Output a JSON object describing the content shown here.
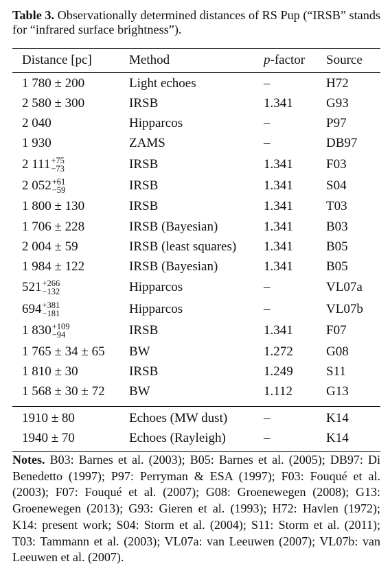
{
  "caption": {
    "label": "Table 3.",
    "text": "Observationally determined distances of RS Pup (“IRSB” stands for “infrared surface brightness”)."
  },
  "table": {
    "headers": {
      "distance_label": "Distance [pc]",
      "method_label": "Method",
      "pfactor_italic": "p",
      "pfactor_rest": "-factor",
      "source_label": "Source"
    },
    "rows": [
      {
        "distance": "1 780 ± 200",
        "method": "Light echoes",
        "pfactor": "–",
        "source": "H72"
      },
      {
        "distance": "2 580 ± 300",
        "method": "IRSB",
        "pfactor": "1.341",
        "source": "G93"
      },
      {
        "distance": "2 040",
        "method": "Hipparcos",
        "pfactor": "–",
        "source": "P97"
      },
      {
        "distance": "1 930",
        "method": "ZAMS",
        "pfactor": "–",
        "source": "DB97"
      },
      {
        "distance_base": "2 111",
        "sup": "+75",
        "sub": "−73",
        "method": "IRSB",
        "pfactor": "1.341",
        "source": "F03"
      },
      {
        "distance_base": "2 052",
        "sup": "+61",
        "sub": "−59",
        "method": "IRSB",
        "pfactor": "1.341",
        "source": "S04"
      },
      {
        "distance": "1 800 ± 130",
        "method": "IRSB",
        "pfactor": "1.341",
        "source": "T03"
      },
      {
        "distance": "1 706 ± 228",
        "method": "IRSB (Bayesian)",
        "pfactor": "1.341",
        "source": "B03"
      },
      {
        "distance": "2 004 ± 59",
        "method": "IRSB (least squares)",
        "pfactor": "1.341",
        "source": "B05"
      },
      {
        "distance": "1 984 ± 122",
        "method": "IRSB (Bayesian)",
        "pfactor": "1.341",
        "source": "B05"
      },
      {
        "distance_base": "521",
        "sup": "+266",
        "sub": "−132",
        "method": "Hipparcos",
        "pfactor": "–",
        "source": "VL07a"
      },
      {
        "distance_base": "694",
        "sup": "+381",
        "sub": "−181",
        "method": "Hipparcos",
        "pfactor": "–",
        "source": "VL07b"
      },
      {
        "distance_base": "1 830",
        "sup": "+109",
        "sub": "−94",
        "method": "IRSB",
        "pfactor": "1.341",
        "source": "F07"
      },
      {
        "distance": "1 765 ± 34 ± 65",
        "method": "BW",
        "pfactor": "1.272",
        "source": "G08"
      },
      {
        "distance": "1 810 ± 30",
        "method": "IRSB",
        "pfactor": "1.249",
        "source": "S11"
      },
      {
        "distance": "1 568 ± 30 ± 72",
        "method": "BW",
        "pfactor": "1.112",
        "source": "G13"
      }
    ],
    "rows_present": [
      {
        "distance": "1910 ± 80",
        "method": "Echoes (MW dust)",
        "pfactor": "–",
        "source": "K14"
      },
      {
        "distance": "1940 ± 70",
        "method": "Echoes (Rayleigh)",
        "pfactor": "–",
        "source": "K14"
      }
    ]
  },
  "notes": {
    "label": "Notes.",
    "text": "B03: Barnes et al. (2003); B05: Barnes et al. (2005); DB97: Di Benedetto (1997); P97: Perryman & ESA (1997); F03: Fouqué et al. (2003); F07: Fouqué et al. (2007); G08: Groenewegen (2008); G13: Groenewegen (2013); G93: Gieren et al. (1993); H72: Havlen (1972); K14: present work; S04: Storm et al. (2004); S11: Storm et al. (2011); T03: Tammann et al. (2003); VL07a: van Leeuwen (2007); VL07b: van Leeuwen et al. (2007)."
  }
}
